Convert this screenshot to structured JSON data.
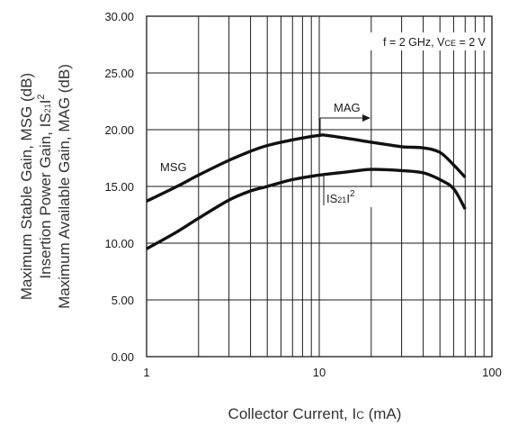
{
  "chart_data": {
    "type": "line",
    "x_scale": "log",
    "xlim": [
      1,
      100
    ],
    "ylim": [
      0,
      30
    ],
    "x_ticks": [
      "1",
      "10",
      "100"
    ],
    "y_ticks": [
      "0.00",
      "5.00",
      "10.00",
      "15.00",
      "20.00",
      "25.00",
      "30.00"
    ],
    "xlabel": "Collector Current, IC (mA)",
    "ylabel_lines": [
      "Maximum Stable Gain, MSG (dB)",
      "Insertion Power Gain, IS21I2",
      "Maximum Available Gain, MAG (dB)"
    ],
    "grid": true,
    "legend": "none",
    "conditions": "f = 2 GHz, VCE = 2 V",
    "annotations": [
      "MSG",
      "MAG",
      "IS21I2"
    ],
    "series": [
      {
        "name": "MSG / MAG",
        "x": [
          1,
          1.5,
          2,
          3,
          4,
          5,
          7,
          10,
          11,
          15,
          20,
          30,
          40,
          50,
          60,
          70
        ],
        "y": [
          13.7,
          15.0,
          16.0,
          17.3,
          18.1,
          18.6,
          19.1,
          19.5,
          19.5,
          19.2,
          18.9,
          18.5,
          18.4,
          18.0,
          16.9,
          15.8
        ]
      },
      {
        "name": "IS21I2",
        "x": [
          1,
          1.5,
          2,
          3,
          4,
          5,
          7,
          10,
          15,
          20,
          30,
          40,
          50,
          60,
          70
        ],
        "y": [
          9.5,
          11.0,
          12.2,
          13.8,
          14.6,
          15.0,
          15.6,
          16.0,
          16.3,
          16.5,
          16.4,
          16.2,
          15.6,
          14.8,
          13.0
        ]
      }
    ]
  }
}
